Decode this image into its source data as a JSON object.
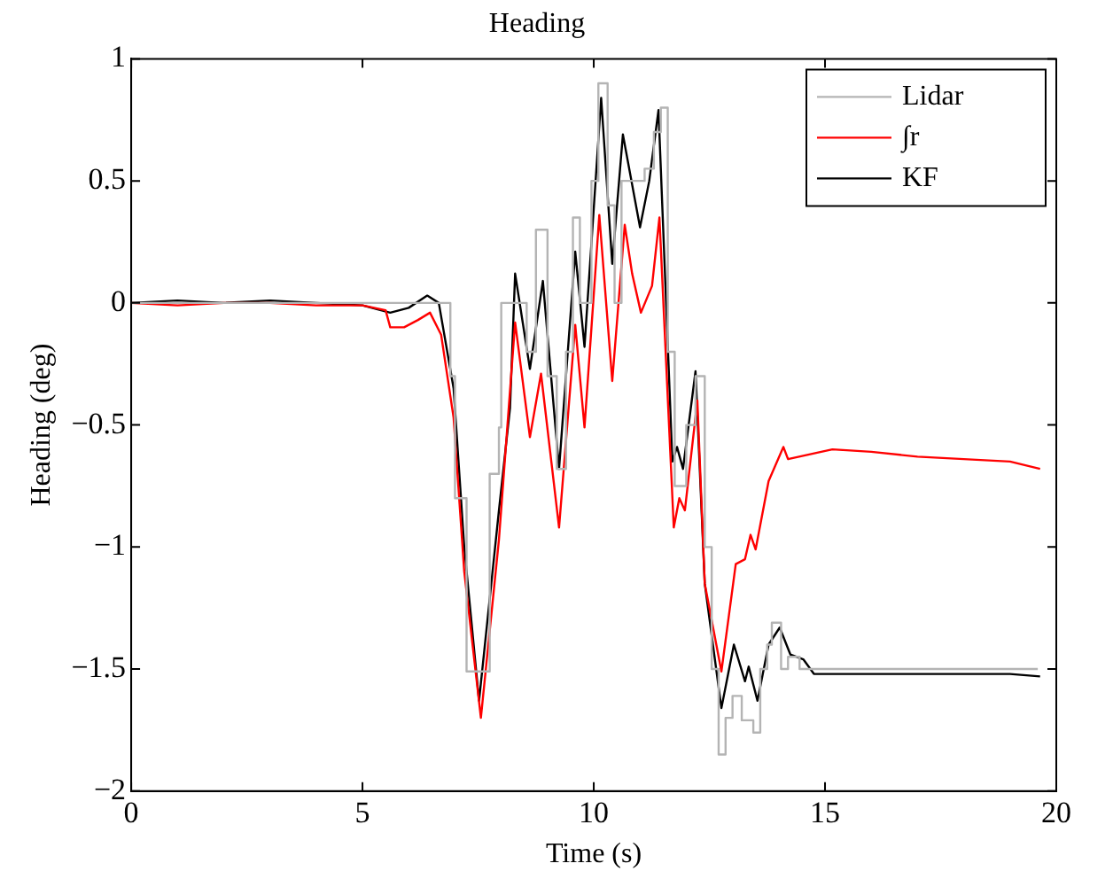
{
  "chart_data": {
    "type": "line",
    "title": "Heading",
    "xlabel": "Time (s)",
    "ylabel": "Heading (deg)",
    "xlim": [
      0,
      20
    ],
    "xticks": [
      0,
      5,
      10,
      15,
      20
    ],
    "ylim": [
      -2,
      1
    ],
    "yticks": [
      {
        "value": -2,
        "label": "−2"
      },
      {
        "value": -1.5,
        "label": "−1.5"
      },
      {
        "value": -1,
        "label": "−1"
      },
      {
        "value": -0.5,
        "label": "−0.5"
      },
      0,
      0.5,
      1
    ],
    "grid": false,
    "legend": "top right",
    "marker": "none",
    "line_style": "solid",
    "series": [
      {
        "name": "Lidar",
        "type": "step",
        "color": "#b4b4b4",
        "x": [
          0,
          6.9,
          7.0,
          7.25,
          7.75,
          7.95,
          8.0,
          8.55,
          8.75,
          9.0,
          9.2,
          9.4,
          9.55,
          9.7,
          9.95,
          10.1,
          10.3,
          10.45,
          10.6,
          11.1,
          11.3,
          11.45,
          11.6,
          11.75,
          12.0,
          12.2,
          12.4,
          12.55,
          12.7,
          12.85,
          13.0,
          13.2,
          13.45,
          13.6,
          13.75,
          13.85,
          14.05,
          14.2,
          14.45,
          19.6
        ],
        "values": [
          0,
          -0.3,
          -0.8,
          -1.51,
          -0.7,
          -0.51,
          0,
          -0.2,
          0.3,
          -0.3,
          -0.68,
          -0.2,
          0.35,
          0,
          0.5,
          0.9,
          0.4,
          0,
          0.5,
          0.55,
          0.7,
          0.8,
          -0.2,
          -0.75,
          -0.5,
          -0.3,
          -1.0,
          -1.5,
          -1.85,
          -1.7,
          -1.61,
          -1.71,
          -1.76,
          -1.5,
          -1.4,
          -1.31,
          -1.5,
          -1.45,
          -1.5,
          -1.5
        ]
      },
      {
        "name": "∫r",
        "color": "#ff0000",
        "x": [
          0,
          1,
          2,
          3,
          4,
          5,
          5.5,
          5.6,
          5.9,
          6.2,
          6.46,
          6.7,
          6.97,
          7.2,
          7.56,
          7.95,
          8.3,
          8.62,
          8.86,
          9.25,
          9.6,
          9.8,
          10.12,
          10.4,
          10.67,
          10.83,
          11.02,
          11.26,
          11.42,
          11.73,
          11.85,
          11.97,
          12.24,
          12.4,
          12.76,
          13.07,
          13.27,
          13.39,
          13.5,
          13.78,
          14.1,
          14.2,
          15.16,
          16,
          17,
          18,
          19,
          19.65
        ],
        "values": [
          0,
          -0.01,
          0,
          0,
          -0.01,
          -0.01,
          -0.03,
          -0.1,
          -0.1,
          -0.07,
          -0.04,
          -0.13,
          -0.47,
          -1.1,
          -1.7,
          -0.97,
          -0.08,
          -0.55,
          -0.29,
          -0.92,
          -0.09,
          -0.51,
          0.36,
          -0.32,
          0.32,
          0.12,
          -0.04,
          0.07,
          0.35,
          -0.92,
          -0.8,
          -0.85,
          -0.4,
          -1.15,
          -1.51,
          -1.07,
          -1.05,
          -0.95,
          -1.01,
          -0.73,
          -0.59,
          -0.64,
          -0.6,
          -0.61,
          -0.63,
          -0.64,
          -0.65,
          -0.68
        ]
      },
      {
        "name": "KF",
        "color": "#000000",
        "x": [
          0,
          1,
          2,
          3,
          4,
          5,
          5.6,
          6.0,
          6.4,
          6.65,
          6.97,
          7.2,
          7.52,
          7.95,
          8.19,
          8.3,
          8.62,
          8.9,
          9.25,
          9.6,
          9.8,
          10.16,
          10.4,
          10.63,
          11.0,
          11.2,
          11.4,
          11.7,
          11.8,
          11.93,
          12.2,
          12.4,
          12.76,
          13.03,
          13.27,
          13.35,
          13.54,
          13.78,
          14.02,
          14.25,
          14.53,
          14.76,
          16,
          17,
          18,
          19,
          19.65
        ],
        "values": [
          0,
          0.01,
          0,
          0.01,
          0,
          -0.01,
          -0.04,
          -0.02,
          0.03,
          0,
          -0.35,
          -1.0,
          -1.63,
          -0.85,
          -0.43,
          0.12,
          -0.27,
          0.09,
          -0.68,
          0.21,
          -0.18,
          0.84,
          0.16,
          0.69,
          0.31,
          0.5,
          0.79,
          -0.65,
          -0.59,
          -0.68,
          -0.28,
          -1.15,
          -1.66,
          -1.4,
          -1.55,
          -1.49,
          -1.63,
          -1.4,
          -1.33,
          -1.44,
          -1.46,
          -1.52,
          -1.52,
          -1.52,
          -1.52,
          -1.52,
          -1.53
        ]
      }
    ]
  }
}
